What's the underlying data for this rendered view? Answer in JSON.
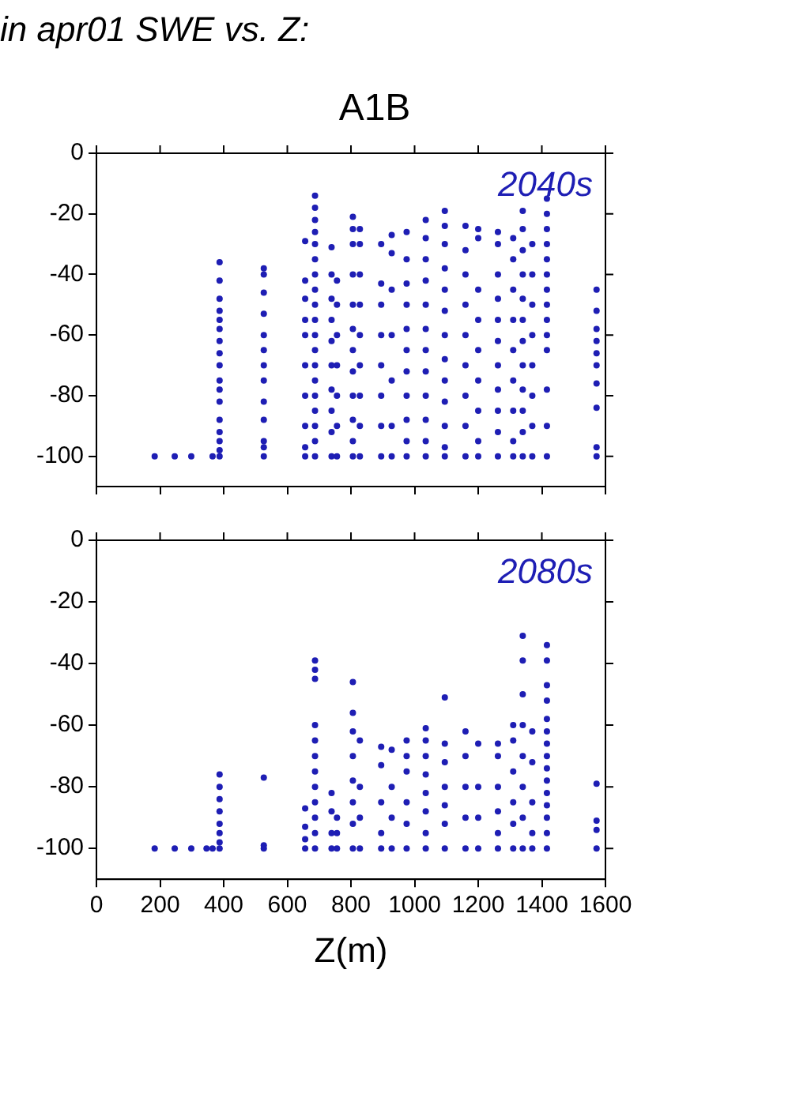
{
  "chart_data": [
    {
      "type": "scatter",
      "title": "in apr01 SWE vs. Z:",
      "subtitle": "A1B",
      "annotations": [
        "2040s"
      ],
      "xlim": [
        0,
        1600
      ],
      "xticks": [
        0,
        200,
        400,
        600,
        800,
        1000,
        1200,
        1400,
        1600
      ],
      "ylim": [
        -110,
        0
      ],
      "yticks": [
        0,
        -20,
        -40,
        -60,
        -80,
        -100
      ],
      "tick_labels": "y",
      "grid": false,
      "legend": false,
      "marker": "circle",
      "series": [
        {
          "color": "#1e1eb4",
          "x": [
            183,
            246,
            298,
            365,
            387,
            387,
            387,
            387,
            387,
            387,
            387,
            387,
            387,
            387,
            387,
            387,
            387,
            387,
            387,
            387,
            387,
            526,
            526,
            526,
            526,
            526,
            526,
            526,
            526,
            526,
            526,
            526,
            526,
            526,
            656,
            656,
            656,
            656,
            656,
            656,
            656,
            656,
            656,
            656,
            687,
            687,
            687,
            687,
            687,
            687,
            687,
            687,
            687,
            687,
            687,
            687,
            687,
            687,
            687,
            687,
            687,
            687,
            687,
            739,
            739,
            739,
            739,
            739,
            739,
            739,
            739,
            739,
            739,
            756,
            756,
            756,
            756,
            756,
            756,
            756,
            806,
            806,
            806,
            806,
            806,
            806,
            806,
            806,
            806,
            806,
            806,
            806,
            828,
            828,
            828,
            828,
            828,
            828,
            828,
            828,
            828,
            895,
            895,
            895,
            895,
            895,
            895,
            895,
            895,
            928,
            928,
            928,
            928,
            928,
            928,
            928,
            975,
            975,
            975,
            975,
            975,
            975,
            975,
            975,
            975,
            975,
            975,
            1035,
            1035,
            1035,
            1035,
            1035,
            1035,
            1035,
            1035,
            1035,
            1035,
            1035,
            1035,
            1095,
            1095,
            1095,
            1095,
            1095,
            1095,
            1095,
            1095,
            1095,
            1095,
            1095,
            1095,
            1095,
            1160,
            1160,
            1160,
            1160,
            1160,
            1160,
            1160,
            1160,
            1160,
            1200,
            1200,
            1200,
            1200,
            1200,
            1200,
            1200,
            1200,
            1200,
            1262,
            1262,
            1262,
            1262,
            1262,
            1262,
            1262,
            1262,
            1262,
            1262,
            1262,
            1310,
            1310,
            1310,
            1310,
            1310,
            1310,
            1310,
            1310,
            1310,
            1340,
            1340,
            1340,
            1340,
            1340,
            1340,
            1340,
            1340,
            1340,
            1340,
            1340,
            1340,
            1370,
            1370,
            1370,
            1370,
            1370,
            1370,
            1370,
            1370,
            1416,
            1416,
            1416,
            1416,
            1416,
            1416,
            1416,
            1416,
            1416,
            1416,
            1416,
            1416,
            1416,
            1416,
            1572,
            1572,
            1572,
            1572,
            1572,
            1572,
            1572,
            1572,
            1572,
            1572
          ],
          "values": [
            -100,
            -100,
            -100,
            -100,
            -36,
            -42,
            -48,
            -52,
            -55,
            -58,
            -62,
            -66,
            -70,
            -75,
            -78,
            -82,
            -88,
            -92,
            -95,
            -98,
            -100,
            -38,
            -40,
            -46,
            -53,
            -60,
            -65,
            -70,
            -75,
            -82,
            -88,
            -95,
            -97,
            -100,
            -29,
            -42,
            -48,
            -55,
            -60,
            -70,
            -80,
            -90,
            -97,
            -100,
            -14,
            -18,
            -22,
            -26,
            -30,
            -35,
            -40,
            -45,
            -50,
            -55,
            -60,
            -65,
            -70,
            -75,
            -80,
            -85,
            -90,
            -95,
            -100,
            -31,
            -40,
            -48,
            -55,
            -62,
            -70,
            -78,
            -85,
            -92,
            -100,
            -42,
            -50,
            -60,
            -70,
            -80,
            -90,
            -100,
            -21,
            -25,
            -30,
            -40,
            -50,
            -58,
            -65,
            -72,
            -80,
            -88,
            -95,
            -100,
            -25,
            -30,
            -40,
            -50,
            -60,
            -70,
            -80,
            -90,
            -100,
            -30,
            -43,
            -50,
            -60,
            -70,
            -80,
            -90,
            -100,
            -27,
            -33,
            -45,
            -60,
            -75,
            -90,
            -100,
            -26,
            -35,
            -43,
            -50,
            -58,
            -65,
            -72,
            -80,
            -88,
            -95,
            -100,
            -22,
            -28,
            -35,
            -42,
            -50,
            -58,
            -65,
            -72,
            -80,
            -88,
            -95,
            -100,
            -19,
            -24,
            -30,
            -38,
            -45,
            -52,
            -60,
            -68,
            -75,
            -82,
            -90,
            -97,
            -100,
            -24,
            -32,
            -40,
            -50,
            -60,
            -70,
            -80,
            -90,
            -100,
            -25,
            -28,
            -45,
            -55,
            -65,
            -75,
            -85,
            -95,
            -100,
            -26,
            -30,
            -40,
            -48,
            -55,
            -62,
            -70,
            -78,
            -85,
            -92,
            -100,
            -28,
            -35,
            -45,
            -55,
            -65,
            -75,
            -85,
            -95,
            -100,
            -19,
            -25,
            -32,
            -40,
            -48,
            -55,
            -62,
            -70,
            -78,
            -85,
            -92,
            -100,
            -30,
            -40,
            -50,
            -60,
            -70,
            -80,
            -90,
            -100,
            -15,
            -20,
            -25,
            -30,
            -35,
            -40,
            -45,
            -50,
            -55,
            -60,
            -65,
            -78,
            -90,
            -100,
            -45,
            -52,
            -58,
            -62,
            -66,
            -70,
            -76,
            -84,
            -97,
            -100
          ]
        }
      ]
    },
    {
      "type": "scatter",
      "xlabel": "Z(m)",
      "annotations": [
        "2080s"
      ],
      "xlim": [
        0,
        1600
      ],
      "xticks": [
        0,
        200,
        400,
        600,
        800,
        1000,
        1200,
        1400,
        1600
      ],
      "ylim": [
        -110,
        0
      ],
      "yticks": [
        0,
        -20,
        -40,
        -60,
        -80,
        -100
      ],
      "grid": false,
      "legend": false,
      "marker": "circle",
      "series": [
        {
          "color": "#1e1eb4",
          "x": [
            183,
            246,
            298,
            346,
            365,
            387,
            387,
            387,
            387,
            387,
            387,
            387,
            387,
            526,
            526,
            526,
            656,
            656,
            656,
            656,
            687,
            687,
            687,
            687,
            687,
            687,
            687,
            687,
            687,
            687,
            687,
            687,
            739,
            739,
            739,
            739,
            756,
            756,
            756,
            806,
            806,
            806,
            806,
            806,
            806,
            806,
            806,
            828,
            828,
            828,
            828,
            895,
            895,
            895,
            895,
            895,
            928,
            928,
            928,
            928,
            975,
            975,
            975,
            975,
            975,
            975,
            1035,
            1035,
            1035,
            1035,
            1035,
            1035,
            1035,
            1035,
            1095,
            1095,
            1095,
            1095,
            1095,
            1095,
            1095,
            1160,
            1160,
            1160,
            1160,
            1160,
            1200,
            1200,
            1200,
            1200,
            1262,
            1262,
            1262,
            1262,
            1262,
            1262,
            1310,
            1310,
            1310,
            1310,
            1310,
            1310,
            1340,
            1340,
            1340,
            1340,
            1340,
            1340,
            1340,
            1340,
            1370,
            1370,
            1370,
            1370,
            1370,
            1416,
            1416,
            1416,
            1416,
            1416,
            1416,
            1416,
            1416,
            1416,
            1416,
            1416,
            1416,
            1416,
            1416,
            1416,
            1572,
            1572,
            1572,
            1572
          ],
          "values": [
            -100,
            -100,
            -100,
            -100,
            -100,
            -76,
            -80,
            -84,
            -88,
            -92,
            -95,
            -98,
            -100,
            -77,
            -99,
            -100,
            -87,
            -93,
            -97,
            -100,
            -39,
            -42,
            -45,
            -60,
            -65,
            -70,
            -75,
            -80,
            -85,
            -90,
            -95,
            -100,
            -82,
            -88,
            -95,
            -100,
            -90,
            -95,
            -100,
            -46,
            -56,
            -62,
            -70,
            -78,
            -85,
            -92,
            -100,
            -65,
            -80,
            -90,
            -100,
            -67,
            -73,
            -85,
            -95,
            -100,
            -68,
            -80,
            -90,
            -100,
            -65,
            -70,
            -75,
            -85,
            -92,
            -100,
            -61,
            -65,
            -70,
            -76,
            -82,
            -88,
            -95,
            -100,
            -51,
            -66,
            -72,
            -80,
            -86,
            -92,
            -100,
            -62,
            -70,
            -80,
            -90,
            -100,
            -66,
            -80,
            -90,
            -100,
            -66,
            -70,
            -80,
            -88,
            -95,
            -100,
            -60,
            -65,
            -75,
            -85,
            -92,
            -100,
            -31,
            -39,
            -50,
            -60,
            -70,
            -80,
            -90,
            -100,
            -62,
            -72,
            -85,
            -95,
            -100,
            -34,
            -39,
            -47,
            -52,
            -58,
            -62,
            -66,
            -70,
            -74,
            -78,
            -82,
            -86,
            -90,
            -95,
            -100,
            -79,
            -91,
            -94,
            -100
          ]
        }
      ]
    }
  ]
}
